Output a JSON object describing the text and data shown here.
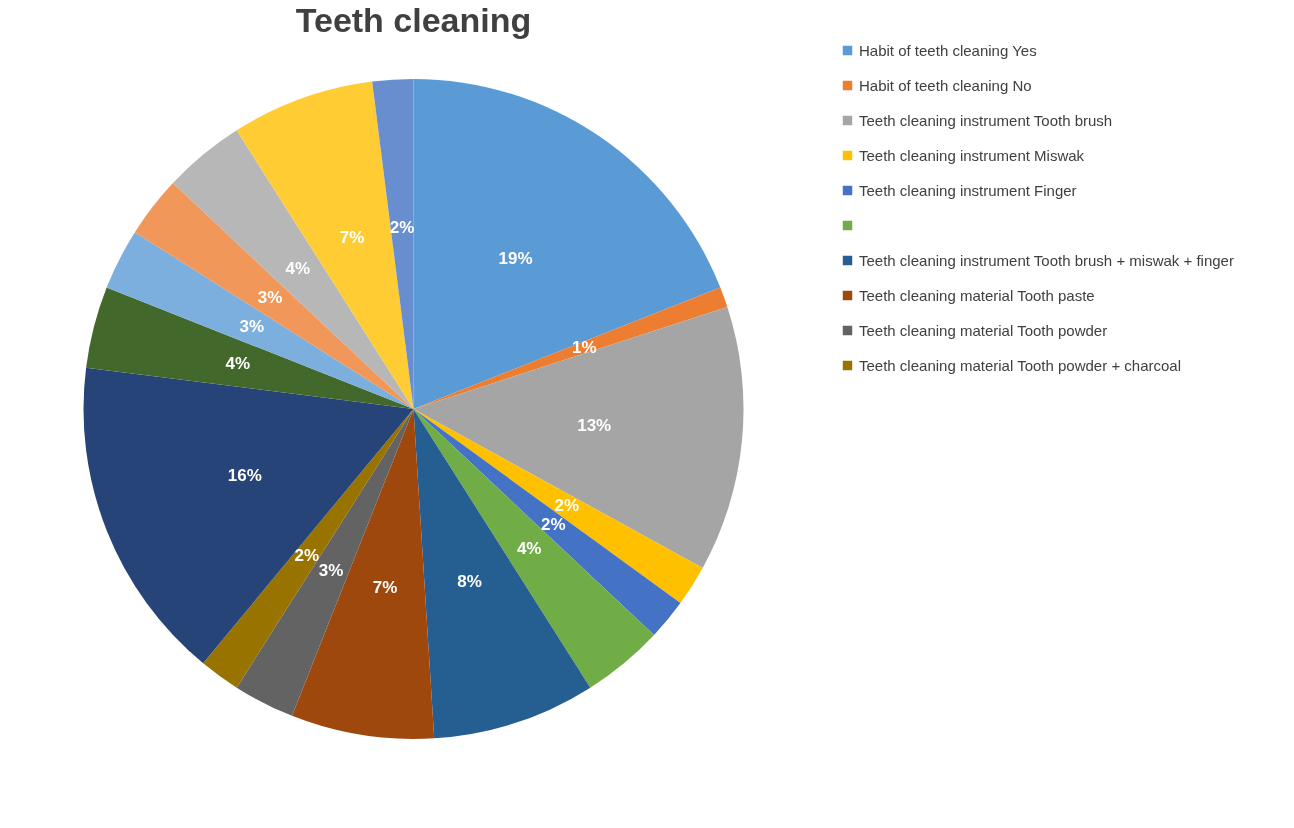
{
  "chart_data": {
    "type": "pie",
    "title": "Teeth cleaning",
    "categories": [
      "Habit of teeth cleaning Yes",
      "Habit of teeth cleaning No",
      "Teeth cleaning instrument Tooth brush",
      "Teeth cleaning instrument Miswak",
      "Teeth cleaning instrument Finger",
      null,
      "Teeth cleaning instrument Tooth brush + miswak + finger",
      "Teeth cleaning material Tooth paste",
      "Teeth cleaning material Tooth powder",
      "Teeth cleaning material Tooth powder + charcoal",
      null,
      null,
      null,
      null,
      null,
      null,
      null
    ],
    "values": [
      19,
      1,
      13,
      2,
      2,
      4,
      8,
      7,
      3,
      2,
      16,
      4,
      3,
      3,
      4,
      7,
      2
    ],
    "colors": [
      "#5b9bd5",
      "#ed7d31",
      "#a5a5a5",
      "#ffc000",
      "#4472c4",
      "#70ad47",
      "#255e91",
      "#9e480e",
      "#636363",
      "#997300",
      "#264478",
      "#43682b",
      "#7cafdd",
      "#f1975a",
      "#b7b7b7",
      "#ffcd33",
      "#698ed0"
    ],
    "value_labels": [
      "19%",
      "1%",
      "13%",
      "2%",
      "2%",
      "4%",
      "8%",
      "7%",
      "3%",
      "2%",
      "16%",
      "4%",
      "3%",
      "3%",
      "4%",
      "7%",
      "2%"
    ],
    "legend": "right"
  }
}
